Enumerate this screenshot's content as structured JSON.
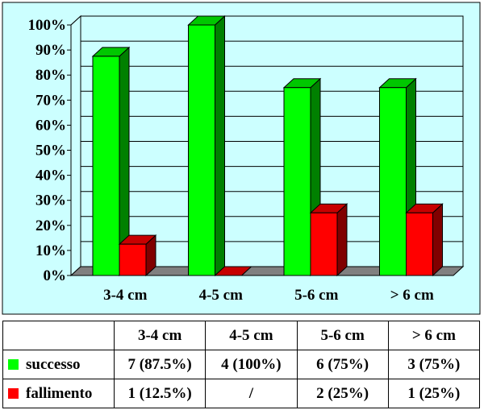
{
  "chart_data": {
    "type": "bar",
    "style": "3d-clustered-column",
    "categories": [
      "3-4 cm",
      "4-5 cm",
      "5-6 cm",
      "> 6 cm"
    ],
    "series": [
      {
        "name": "successo",
        "color": "#00FF00",
        "values": [
          87.5,
          100,
          75,
          75
        ]
      },
      {
        "name": "fallimento",
        "color": "#FF0000",
        "values": [
          12.5,
          0,
          25,
          25
        ]
      }
    ],
    "yticks": [
      "0%",
      "10%",
      "20%",
      "30%",
      "40%",
      "50%",
      "60%",
      "70%",
      "80%",
      "90%",
      "100%"
    ],
    "ylim": [
      0,
      100
    ],
    "grid": true,
    "plot_background": "#CCFFFF"
  },
  "table": {
    "headers": [
      "3-4 cm",
      "4-5 cm",
      "5-6 cm",
      "> 6 cm"
    ],
    "rows": [
      {
        "label": "successo",
        "color": "#00FF00",
        "cells": [
          "7 (87.5%)",
          "4 (100%)",
          "6 (75%)",
          "3 (75%)"
        ]
      },
      {
        "label": "fallimento",
        "color": "#FF0000",
        "cells": [
          "1 (12.5%)",
          "/",
          "2 (25%)",
          "1 (25%)"
        ]
      }
    ]
  }
}
